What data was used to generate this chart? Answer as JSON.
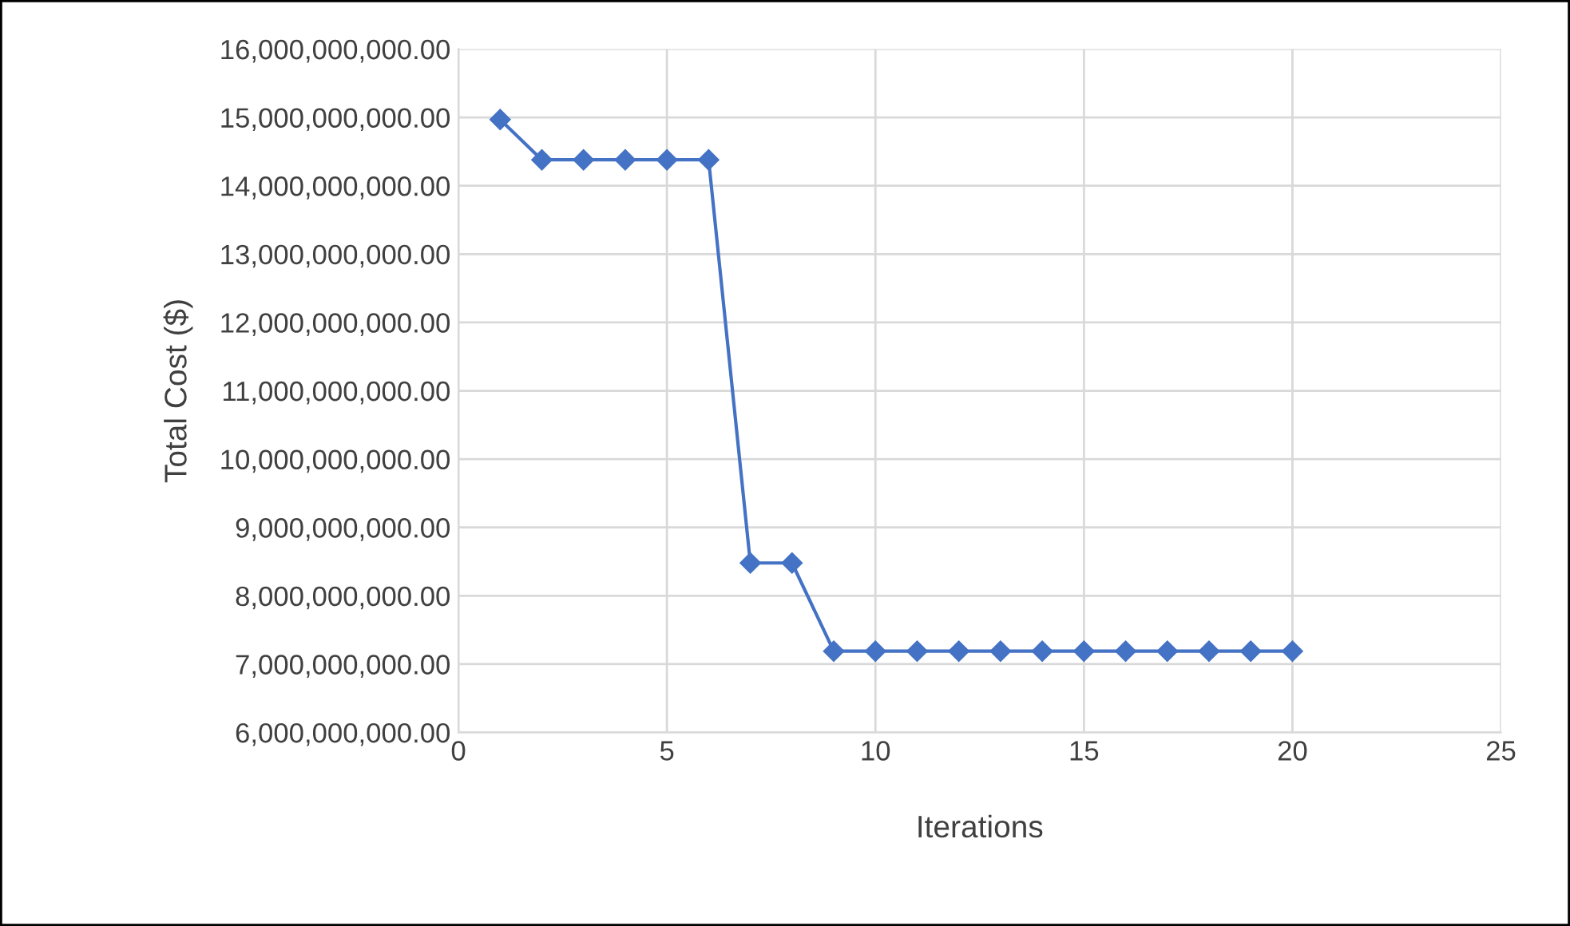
{
  "chart_data": {
    "type": "line",
    "xlabel": "Iterations",
    "ylabel": "Total Cost ($)",
    "x": [
      1,
      2,
      3,
      4,
      5,
      6,
      7,
      8,
      9,
      10,
      11,
      12,
      13,
      14,
      15,
      16,
      17,
      18,
      19,
      20
    ],
    "series": [
      {
        "color": "#4472c4",
        "values": [
          14970000000,
          14380000000,
          14380000000,
          14380000000,
          14380000000,
          14380000000,
          8480000000,
          8480000000,
          7190000000,
          7190000000,
          7190000000,
          7190000000,
          7190000000,
          7190000000,
          7190000000,
          7190000000,
          7190000000,
          7190000000,
          7190000000,
          7190000000
        ]
      }
    ],
    "xlim": [
      0,
      25
    ],
    "xticks": [
      0,
      5,
      10,
      15,
      20,
      25
    ],
    "ylim": [
      6000000000,
      16000000000
    ],
    "yticks": [
      {
        "value": 6000000000,
        "label": "6,000,000,000.00"
      },
      {
        "value": 7000000000,
        "label": "7,000,000,000.00"
      },
      {
        "value": 8000000000,
        "label": "8,000,000,000.00"
      },
      {
        "value": 9000000000,
        "label": "9,000,000,000.00"
      },
      {
        "value": 10000000000,
        "label": "10,000,000,000.00"
      },
      {
        "value": 11000000000,
        "label": "11,000,000,000.00"
      },
      {
        "value": 12000000000,
        "label": "12,000,000,000.00"
      },
      {
        "value": 13000000000,
        "label": "13,000,000,000.00"
      },
      {
        "value": 14000000000,
        "label": "14,000,000,000.00"
      },
      {
        "value": 15000000000,
        "label": "15,000,000,000.00"
      },
      {
        "value": 16000000000,
        "label": "16,000,000,000.00"
      }
    ],
    "grid": true,
    "marker": "diamond",
    "line_style": "solid"
  }
}
